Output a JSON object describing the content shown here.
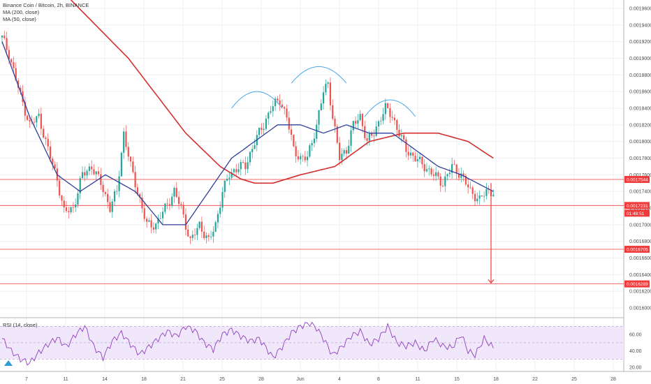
{
  "chart_data": {
    "type": "candlestick",
    "title": "Binance Coin / Bitcoin, 2h, BINANCE",
    "indicators": [
      {
        "name": "MA (200, close)",
        "color": "#d32f2f"
      },
      {
        "name": "MA (50, close)",
        "color": "#2f3f9a"
      }
    ],
    "price_axis": {
      "ylim": [
        0.00159,
        0.00197
      ],
      "ticks": [
        "0.0019600",
        "0.0019400",
        "0.0019200",
        "0.0019000",
        "0.0018800",
        "0.0018600",
        "0.0018400",
        "0.0018200",
        "0.0018000",
        "0.0017800",
        "0.0017600",
        "0.0017400",
        "0.0017200",
        "0.0017000",
        "0.0016800",
        "0.0016600",
        "0.0016400",
        "0.0016200",
        "0.0016000"
      ]
    },
    "time_axis": {
      "labels": [
        "7",
        "11",
        "14",
        "18",
        "21",
        "25",
        "28",
        "Jun",
        "4",
        "8",
        "11",
        "15",
        "18",
        "22",
        "25",
        "28"
      ]
    },
    "horizontal_levels": [
      {
        "value": 0.0017544,
        "label": "0.0017544",
        "color": "#ef3b3b"
      },
      {
        "value": 0.0017231,
        "label": "0.0017231",
        "color": "#ef3b3b"
      },
      {
        "value": 0.0016705,
        "label": "0.0016705",
        "color": "#ef3b3b"
      },
      {
        "value": 0.0016289,
        "label": "0.0016289",
        "color": "#ef3b3b"
      }
    ],
    "last_price": {
      "value": 0.0017231,
      "label": "0.0017231"
    },
    "countdown": "01:48:51",
    "close_path": [
      [
        0,
        0.001925
      ],
      [
        3,
        0.001905
      ],
      [
        8,
        0.001855
      ],
      [
        12,
        0.00182
      ],
      [
        16,
        0.00183
      ],
      [
        20,
        0.00179
      ],
      [
        24,
        0.001755
      ],
      [
        27,
        0.001715
      ],
      [
        31,
        0.00172
      ],
      [
        35,
        0.00176
      ],
      [
        39,
        0.00177
      ],
      [
        43,
        0.00175
      ],
      [
        47,
        0.00172
      ],
      [
        50,
        0.00174
      ],
      [
        53,
        0.00181
      ],
      [
        56,
        0.00177
      ],
      [
        60,
        0.00173
      ],
      [
        63,
        0.0017
      ],
      [
        67,
        0.0017
      ],
      [
        71,
        0.00172
      ],
      [
        75,
        0.00174
      ],
      [
        78,
        0.00172
      ],
      [
        82,
        0.00168
      ],
      [
        86,
        0.0017
      ],
      [
        90,
        0.00168
      ],
      [
        93,
        0.0017
      ],
      [
        96,
        0.00174
      ],
      [
        99,
        0.00176
      ],
      [
        103,
        0.00177
      ],
      [
        106,
        0.00177
      ],
      [
        110,
        0.0018
      ],
      [
        114,
        0.00182
      ],
      [
        117,
        0.00184
      ],
      [
        121,
        0.00185
      ],
      [
        124,
        0.00183
      ],
      [
        127,
        0.00179
      ],
      [
        130,
        0.00178
      ],
      [
        133,
        0.00178
      ],
      [
        137,
        0.00182
      ],
      [
        140,
        0.00186
      ],
      [
        142,
        0.00187
      ],
      [
        144,
        0.00183
      ],
      [
        147,
        0.00178
      ],
      [
        150,
        0.00179
      ],
      [
        153,
        0.00182
      ],
      [
        156,
        0.00183
      ],
      [
        159,
        0.0018
      ],
      [
        162,
        0.00181
      ],
      [
        165,
        0.00183
      ],
      [
        167,
        0.00184
      ],
      [
        170,
        0.00183
      ],
      [
        173,
        0.00181
      ],
      [
        176,
        0.00179
      ],
      [
        180,
        0.00178
      ],
      [
        184,
        0.00177
      ],
      [
        188,
        0.00176
      ],
      [
        192,
        0.00175
      ],
      [
        196,
        0.00177
      ],
      [
        200,
        0.00176
      ],
      [
        204,
        0.00174
      ],
      [
        208,
        0.00173
      ],
      [
        211,
        0.00174
      ],
      [
        214,
        0.00174
      ]
    ],
    "ma200_path": [
      [
        30,
        0.00197
      ],
      [
        55,
        0.0019
      ],
      [
        80,
        0.00181
      ],
      [
        95,
        0.00177
      ],
      [
        104,
        0.001755
      ],
      [
        110,
        0.00175
      ],
      [
        118,
        0.00175
      ],
      [
        130,
        0.00176
      ],
      [
        145,
        0.00177
      ],
      [
        160,
        0.0018
      ],
      [
        175,
        0.00181
      ],
      [
        190,
        0.00181
      ],
      [
        203,
        0.0018
      ],
      [
        214,
        0.00178
      ]
    ],
    "ma50_path": [
      [
        0,
        0.00192
      ],
      [
        12,
        0.00183
      ],
      [
        24,
        0.00176
      ],
      [
        34,
        0.00174
      ],
      [
        45,
        0.00176
      ],
      [
        58,
        0.00174
      ],
      [
        70,
        0.0017
      ],
      [
        80,
        0.0017
      ],
      [
        90,
        0.00174
      ],
      [
        100,
        0.00178
      ],
      [
        110,
        0.0018
      ],
      [
        120,
        0.00182
      ],
      [
        130,
        0.00182
      ],
      [
        140,
        0.00181
      ],
      [
        150,
        0.00182
      ],
      [
        160,
        0.00181
      ],
      [
        170,
        0.00181
      ],
      [
        180,
        0.00179
      ],
      [
        190,
        0.00177
      ],
      [
        200,
        0.00176
      ],
      [
        214,
        0.00174
      ]
    ],
    "arcs": [
      {
        "x": [
          100,
          122
        ],
        "peak": 0.00186,
        "base": 0.00184
      },
      {
        "x": [
          126,
          150
        ],
        "peak": 0.00189,
        "base": 0.00187
      },
      {
        "x": [
          158,
          180
        ],
        "peak": 0.00185,
        "base": 0.00183
      }
    ],
    "target_arrow": {
      "x": 213,
      "from": 0.00175,
      "to": 0.00163
    },
    "rsi": {
      "name": "RSI (14, close)",
      "ylim": [
        15,
        78
      ],
      "ticks": [
        "60.00",
        "40.00",
        "20.00"
      ],
      "band": [
        30,
        70
      ],
      "path": [
        [
          0,
          55
        ],
        [
          4,
          40
        ],
        [
          8,
          30
        ],
        [
          12,
          25
        ],
        [
          16,
          38
        ],
        [
          20,
          48
        ],
        [
          24,
          56
        ],
        [
          28,
          45
        ],
        [
          32,
          60
        ],
        [
          36,
          70
        ],
        [
          40,
          45
        ],
        [
          44,
          32
        ],
        [
          48,
          52
        ],
        [
          52,
          62
        ],
        [
          56,
          48
        ],
        [
          60,
          36
        ],
        [
          64,
          45
        ],
        [
          68,
          55
        ],
        [
          72,
          64
        ],
        [
          76,
          58
        ],
        [
          80,
          70
        ],
        [
          84,
          65
        ],
        [
          88,
          50
        ],
        [
          92,
          42
        ],
        [
          96,
          60
        ],
        [
          100,
          66
        ],
        [
          104,
          58
        ],
        [
          108,
          52
        ],
        [
          112,
          55
        ],
        [
          116,
          40
        ],
        [
          118,
          32
        ],
        [
          122,
          45
        ],
        [
          126,
          62
        ],
        [
          130,
          70
        ],
        [
          134,
          74
        ],
        [
          137,
          68
        ],
        [
          140,
          55
        ],
        [
          144,
          35
        ],
        [
          148,
          45
        ],
        [
          152,
          58
        ],
        [
          156,
          64
        ],
        [
          160,
          48
        ],
        [
          164,
          55
        ],
        [
          168,
          70
        ],
        [
          172,
          50
        ],
        [
          176,
          46
        ],
        [
          180,
          50
        ],
        [
          184,
          40
        ],
        [
          188,
          55
        ],
        [
          192,
          46
        ],
        [
          196,
          44
        ],
        [
          200,
          60
        ],
        [
          203,
          40
        ],
        [
          206,
          35
        ],
        [
          210,
          55
        ],
        [
          214,
          44
        ]
      ]
    }
  }
}
